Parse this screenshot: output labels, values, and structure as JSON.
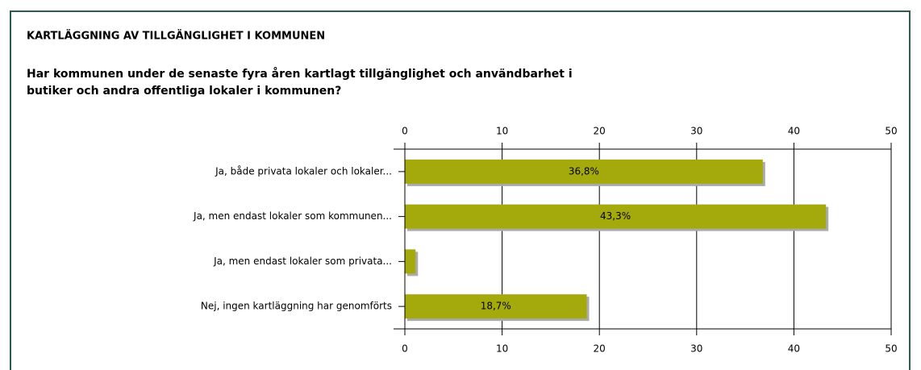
{
  "chart_data": {
    "type": "bar",
    "orientation": "horizontal",
    "title": "KARTLÄGGNING AV TILLGÄNGLIGHET I KOMMUNEN",
    "subtitle": [
      "Har kommunen under de senaste fyra åren kartlagt tillgänglighet och användbarhet i",
      "butiker och andra offentliga lokaler i kommunen?"
    ],
    "categories": [
      "Ja, både privata lokaler och lokaler...",
      "Ja, men endast lokaler som kommunen...",
      "Ja, men endast lokaler som privata...",
      "Nej, ingen kartläggning har genomförts"
    ],
    "values": [
      36.8,
      43.3,
      1.1,
      18.7
    ],
    "value_labels": [
      "36,8%",
      "43,3%",
      null,
      "18,7%"
    ],
    "color": "#a5aa0c",
    "xlim": [
      0,
      50
    ],
    "xticks": [
      0,
      10,
      20,
      30,
      40,
      50
    ],
    "grid": true
  }
}
